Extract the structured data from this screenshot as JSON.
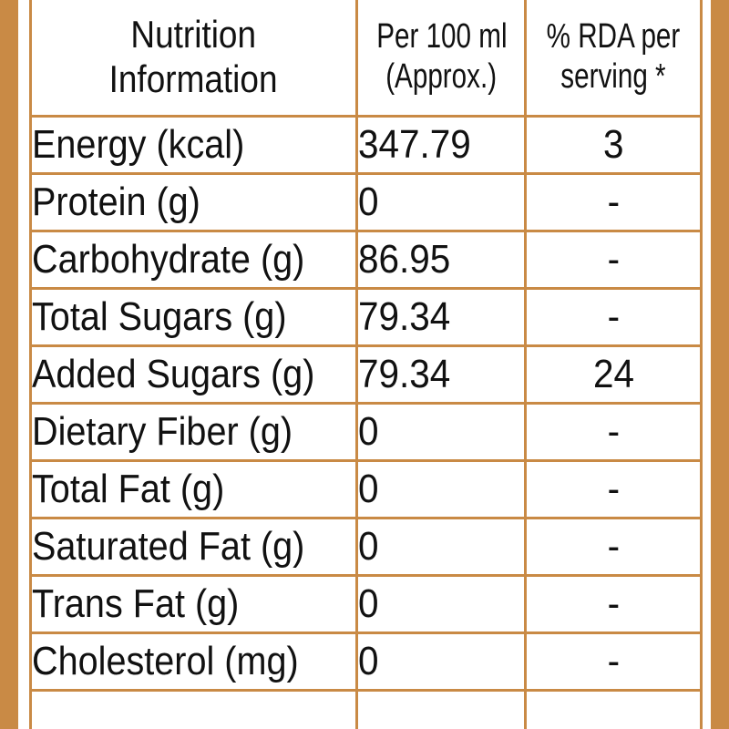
{
  "table": {
    "headers": {
      "nutrient_line1": "Nutrition",
      "nutrient_line2": "Information",
      "per100_line1": "Per 100 ml",
      "per100_line2": "(Approx.)",
      "rda_line1": "% RDA per",
      "rda_line2": "serving *"
    },
    "rows": [
      {
        "nutrient": "Energy (kcal)",
        "per100": "347.79",
        "rda": "3"
      },
      {
        "nutrient": "Protein (g)",
        "per100": "0",
        "rda": "-"
      },
      {
        "nutrient": "Carbohydrate (g)",
        "per100": "86.95",
        "rda": "-"
      },
      {
        "nutrient": "Total Sugars (g)",
        "per100": "79.34",
        "rda": "-"
      },
      {
        "nutrient": "Added Sugars (g)",
        "per100": "79.34",
        "rda": "24"
      },
      {
        "nutrient": "Dietary Fiber (g)",
        "per100": "0",
        "rda": "-"
      },
      {
        "nutrient": "Total Fat (g)",
        "per100": "0",
        "rda": "-"
      },
      {
        "nutrient": "Saturated Fat (g)",
        "per100": "0",
        "rda": "-"
      },
      {
        "nutrient": "Trans Fat (g)",
        "per100": "0",
        "rda": "-"
      },
      {
        "nutrient": "Cholesterol (mg)",
        "per100": "0",
        "rda": "-"
      }
    ]
  },
  "colors": {
    "border": "#c98a45",
    "text": "#111111",
    "background": "#ffffff"
  }
}
